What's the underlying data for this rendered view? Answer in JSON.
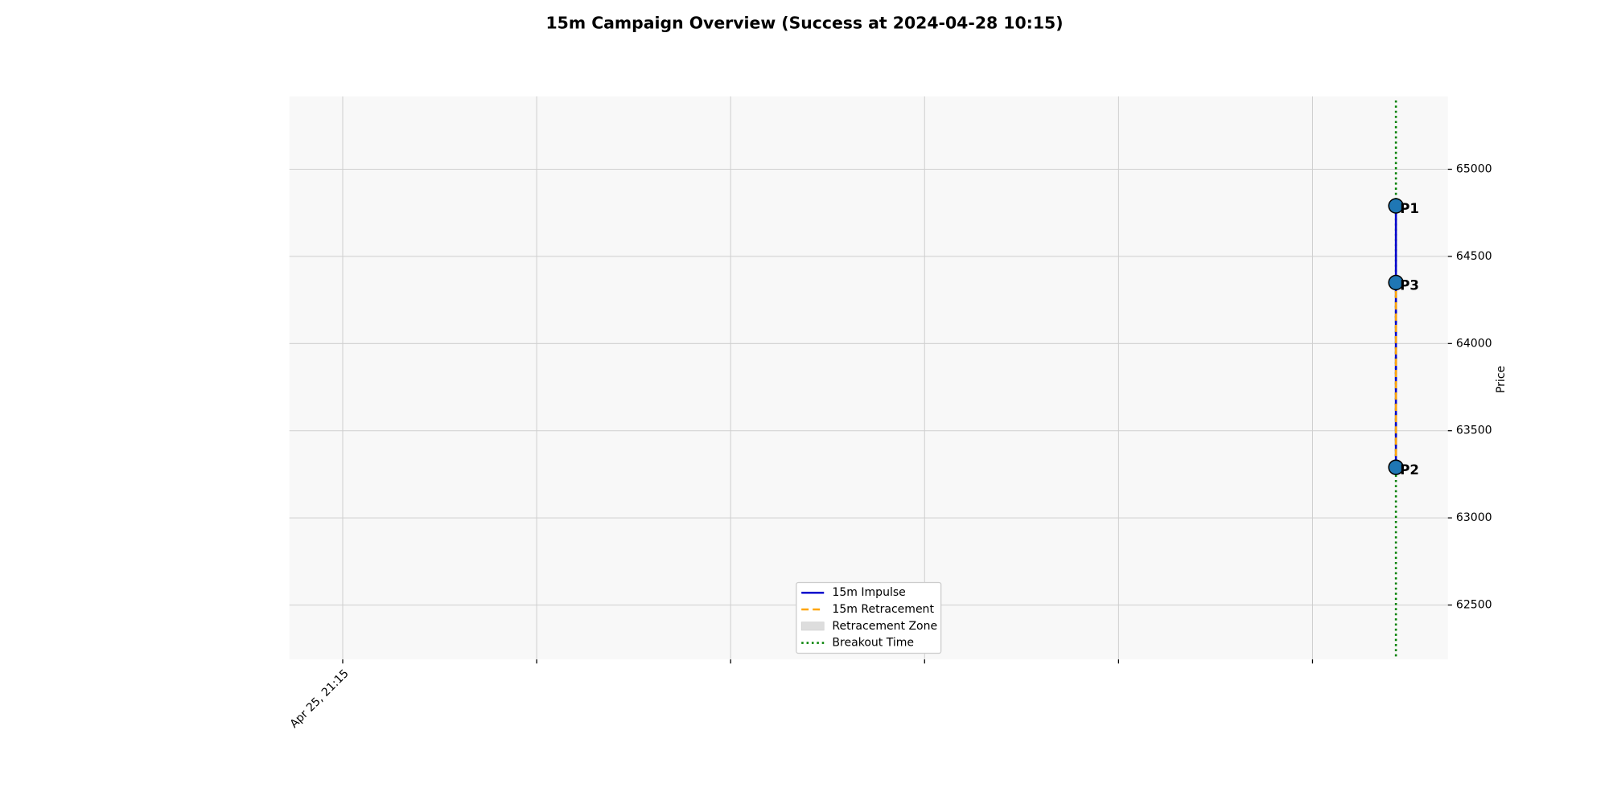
{
  "chart_data": {
    "type": "line",
    "title": "15m Campaign Overview (Success at 2024-04-28 10:15)",
    "y_label": "Price",
    "xlim": [
      -0.275,
      5.698
    ],
    "xticks": [
      {
        "value": 0,
        "label": "Apr 25, 21:15"
      },
      {
        "value": 1,
        "label": null
      },
      {
        "value": 2,
        "label": null
      },
      {
        "value": 3,
        "label": null
      },
      {
        "value": 4,
        "label": null
      },
      {
        "value": 5,
        "label": null
      }
    ],
    "ylim": [
      62188,
      65418
    ],
    "yticks": [
      62500,
      63000,
      63500,
      64000,
      64500,
      65000
    ],
    "grid": true,
    "series": [
      {
        "name": "15m Impulse",
        "color": "#0000cc",
        "dash": "solid",
        "x": [
          5.43,
          5.43
        ],
        "values": [
          64790,
          63290
        ]
      },
      {
        "name": "15m Retracement",
        "color": "#ffa500",
        "dash": "dashed",
        "x": [
          5.43,
          5.43
        ],
        "values": [
          63290,
          64350
        ]
      }
    ],
    "zone": {
      "name": "Retracement Zone",
      "color": "#dddddd"
    },
    "breakout": {
      "name": "Breakout Time",
      "color": "#008000",
      "x": 5.43
    },
    "points": [
      {
        "label": "P1",
        "x": 5.43,
        "y": 64790
      },
      {
        "label": "P2",
        "x": 5.43,
        "y": 63290
      },
      {
        "label": "P3",
        "x": 5.43,
        "y": 64350
      }
    ],
    "point_color": "#1f77b4",
    "legend": "lower center"
  }
}
